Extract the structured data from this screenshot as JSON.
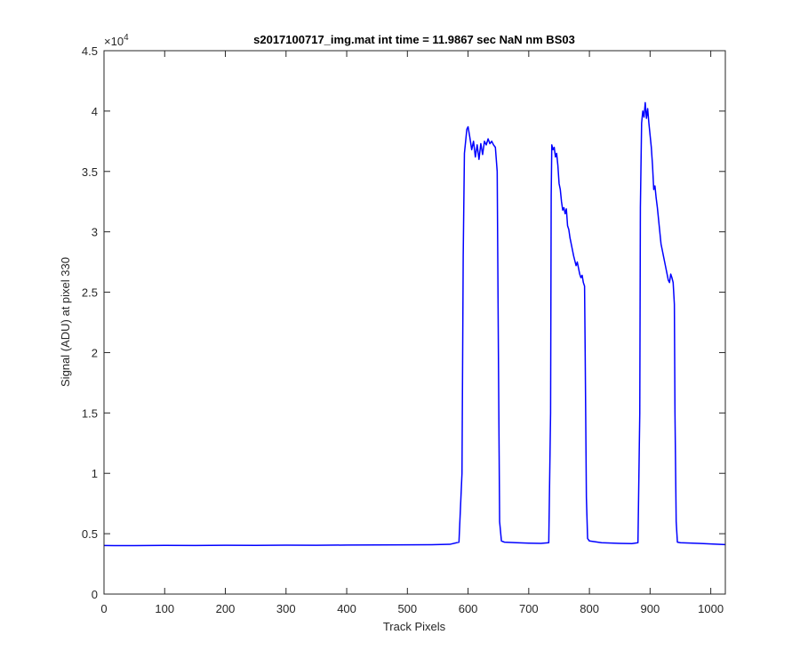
{
  "chart_data": {
    "type": "line",
    "title": "s2017100717_img.mat int time = 11.9867 sec  NaN nm BS03",
    "xlabel": "Track Pixels",
    "ylabel": "Signal (ADU) at pixel 330",
    "xlim": [
      0,
      1024
    ],
    "ylim": [
      0,
      45000
    ],
    "x_ticks": [
      0,
      100,
      200,
      300,
      400,
      500,
      600,
      700,
      800,
      900,
      1000
    ],
    "x_tick_labels": [
      "0",
      "100",
      "200",
      "300",
      "400",
      "500",
      "600",
      "700",
      "800",
      "900",
      "1000"
    ],
    "y_ticks": [
      0,
      5000,
      10000,
      15000,
      20000,
      25000,
      30000,
      35000,
      40000,
      45000
    ],
    "y_tick_labels": [
      "0",
      "0.5",
      "1",
      "1.5",
      "2",
      "2.5",
      "3",
      "3.5",
      "4",
      "4.5"
    ],
    "y_exponent_base": "×10",
    "y_exponent_power": "4",
    "grid": false,
    "series": [
      {
        "color": "#0000ff",
        "points": [
          [
            0,
            4020
          ],
          [
            50,
            4010
          ],
          [
            100,
            4030
          ],
          [
            150,
            4020
          ],
          [
            200,
            4040
          ],
          [
            250,
            4030
          ],
          [
            300,
            4050
          ],
          [
            350,
            4040
          ],
          [
            400,
            4060
          ],
          [
            450,
            4070
          ],
          [
            500,
            4080
          ],
          [
            540,
            4090
          ],
          [
            570,
            4120
          ],
          [
            585,
            4300
          ],
          [
            590,
            10000
          ],
          [
            592,
            28000
          ],
          [
            594,
            36500
          ],
          [
            596,
            37500
          ],
          [
            598,
            38500
          ],
          [
            600,
            38700
          ],
          [
            603,
            37800
          ],
          [
            606,
            36800
          ],
          [
            609,
            37500
          ],
          [
            612,
            36200
          ],
          [
            615,
            37200
          ],
          [
            618,
            36000
          ],
          [
            621,
            37300
          ],
          [
            624,
            36400
          ],
          [
            627,
            37500
          ],
          [
            630,
            37200
          ],
          [
            633,
            37700
          ],
          [
            636,
            37300
          ],
          [
            639,
            37500
          ],
          [
            642,
            37200
          ],
          [
            645,
            37000
          ],
          [
            648,
            35000
          ],
          [
            650,
            20000
          ],
          [
            652,
            6000
          ],
          [
            655,
            4400
          ],
          [
            660,
            4300
          ],
          [
            680,
            4250
          ],
          [
            700,
            4220
          ],
          [
            720,
            4200
          ],
          [
            733,
            4250
          ],
          [
            736,
            15000
          ],
          [
            737,
            33000
          ],
          [
            738,
            37200
          ],
          [
            740,
            36800
          ],
          [
            742,
            37000
          ],
          [
            744,
            36200
          ],
          [
            746,
            36500
          ],
          [
            748,
            35500
          ],
          [
            750,
            34000
          ],
          [
            752,
            33500
          ],
          [
            754,
            32500
          ],
          [
            756,
            31800
          ],
          [
            758,
            32000
          ],
          [
            760,
            31500
          ],
          [
            762,
            31900
          ],
          [
            764,
            30500
          ],
          [
            766,
            30200
          ],
          [
            768,
            29500
          ],
          [
            770,
            29000
          ],
          [
            772,
            28500
          ],
          [
            774,
            28000
          ],
          [
            776,
            27600
          ],
          [
            778,
            27200
          ],
          [
            780,
            27500
          ],
          [
            782,
            27000
          ],
          [
            784,
            26500
          ],
          [
            786,
            26200
          ],
          [
            788,
            26400
          ],
          [
            790,
            25800
          ],
          [
            792,
            25500
          ],
          [
            793,
            20000
          ],
          [
            795,
            8000
          ],
          [
            797,
            4600
          ],
          [
            800,
            4400
          ],
          [
            820,
            4250
          ],
          [
            850,
            4200
          ],
          [
            870,
            4180
          ],
          [
            880,
            4250
          ],
          [
            883,
            15000
          ],
          [
            884,
            32000
          ],
          [
            886,
            39000
          ],
          [
            888,
            40000
          ],
          [
            890,
            39500
          ],
          [
            892,
            40700
          ],
          [
            894,
            39400
          ],
          [
            896,
            40200
          ],
          [
            898,
            39000
          ],
          [
            900,
            38000
          ],
          [
            902,
            37000
          ],
          [
            904,
            35500
          ],
          [
            906,
            33500
          ],
          [
            908,
            33800
          ],
          [
            910,
            32800
          ],
          [
            912,
            32000
          ],
          [
            914,
            31000
          ],
          [
            916,
            30000
          ],
          [
            918,
            29000
          ],
          [
            920,
            28500
          ],
          [
            922,
            28000
          ],
          [
            924,
            27500
          ],
          [
            926,
            27000
          ],
          [
            928,
            26500
          ],
          [
            930,
            26000
          ],
          [
            932,
            25800
          ],
          [
            934,
            26500
          ],
          [
            936,
            26200
          ],
          [
            938,
            25800
          ],
          [
            940,
            24000
          ],
          [
            941,
            15000
          ],
          [
            943,
            6000
          ],
          [
            945,
            4300
          ],
          [
            950,
            4250
          ],
          [
            980,
            4200
          ],
          [
            1000,
            4150
          ],
          [
            1024,
            4100
          ]
        ]
      }
    ]
  }
}
